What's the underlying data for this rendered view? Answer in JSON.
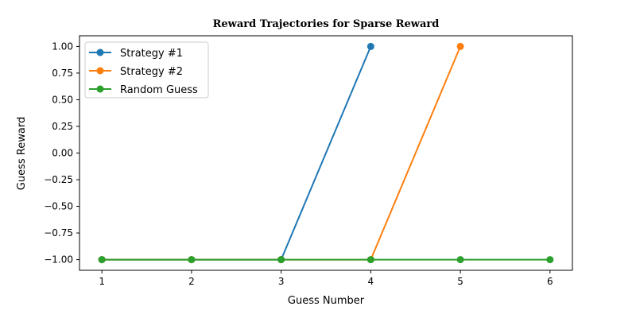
{
  "chart_data": {
    "type": "line",
    "title": "Reward Trajectories for Sparse Reward",
    "xlabel": "Guess Number",
    "ylabel": "Guess Reward",
    "xlim": [
      0.75,
      6.25
    ],
    "ylim": [
      -1.1,
      1.1
    ],
    "x_ticks": [
      "1",
      "2",
      "3",
      "4",
      "5",
      "6"
    ],
    "y_ticks": [
      "−1.00",
      "−0.75",
      "−0.50",
      "−0.25",
      "0.00",
      "0.25",
      "0.50",
      "0.75",
      "1.00"
    ],
    "grid": false,
    "legend_position": "upper-left",
    "series": [
      {
        "name": "Strategy #1",
        "color": "#1f77b4",
        "x": [
          1,
          2,
          3,
          4
        ],
        "y": [
          -1,
          -1,
          -1,
          1
        ]
      },
      {
        "name": "Strategy #2",
        "color": "#ff7f0e",
        "x": [
          1,
          2,
          3,
          4,
          5
        ],
        "y": [
          -1,
          -1,
          -1,
          -1,
          1
        ]
      },
      {
        "name": "Random Guess",
        "color": "#2ca02c",
        "x": [
          1,
          2,
          3,
          4,
          5,
          6
        ],
        "y": [
          -1,
          -1,
          -1,
          -1,
          -1,
          -1
        ]
      }
    ]
  }
}
